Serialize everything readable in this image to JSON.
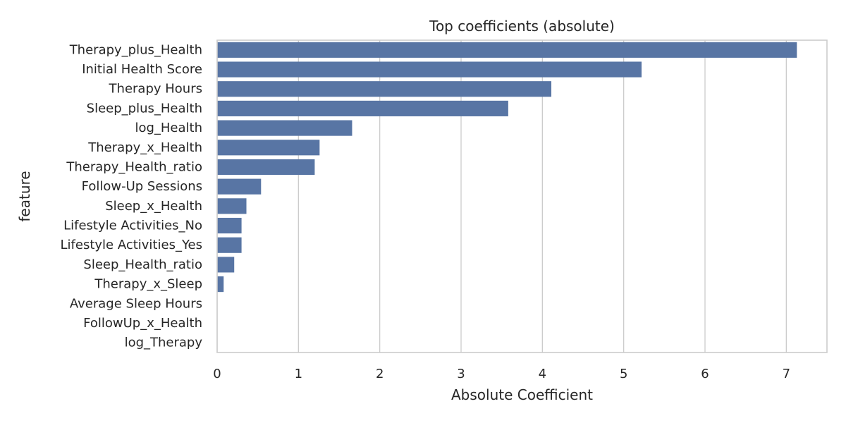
{
  "chart_data": {
    "type": "bar",
    "orientation": "horizontal",
    "title": "Top coefficients (absolute)",
    "xlabel": "Absolute Coefficient",
    "ylabel": "feature",
    "xlim": [
      0,
      7.5
    ],
    "xticks": [
      0,
      1,
      2,
      3,
      4,
      5,
      6,
      7
    ],
    "grid": "vertical",
    "categories": [
      "Therapy_plus_Health",
      "Initial Health Score",
      "Therapy Hours",
      "Sleep_plus_Health",
      "log_Health",
      "Therapy_x_Health",
      "Therapy_Health_ratio",
      "Follow-Up Sessions",
      "Sleep_x_Health",
      "Lifestyle Activities_No",
      "Lifestyle Activities_Yes",
      "Sleep_Health_ratio",
      "Therapy_x_Sleep",
      "Average Sleep Hours",
      "FollowUp_x_Health",
      "log_Therapy"
    ],
    "values": [
      7.13,
      5.22,
      4.11,
      3.58,
      1.66,
      1.26,
      1.2,
      0.54,
      0.36,
      0.3,
      0.3,
      0.21,
      0.08,
      0,
      0,
      0
    ],
    "colors": {
      "bar": "#5875a4",
      "grid": "#cccccc",
      "spine": "#cccccc",
      "text": "#262626"
    }
  }
}
